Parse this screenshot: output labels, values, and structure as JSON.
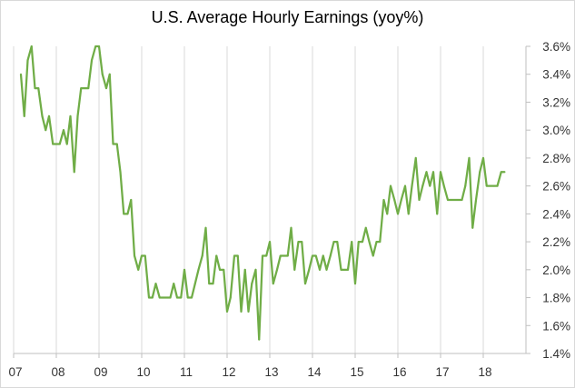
{
  "chart_data": {
    "type": "line",
    "title": "U.S. Average Hourly Earnings (yoy%)",
    "xlabel": "",
    "ylabel": "",
    "grid": {
      "horizontal": false,
      "vertical": true
    },
    "legend": "none",
    "ylim": [
      1.4,
      3.6
    ],
    "y_ticks": [
      "3.6%",
      "3.4%",
      "3.2%",
      "3.0%",
      "2.8%",
      "2.6%",
      "2.4%",
      "2.2%",
      "2.0%",
      "1.8%",
      "1.6%",
      "1.4%"
    ],
    "y_tick_values": [
      3.6,
      3.4,
      3.2,
      3.0,
      2.8,
      2.6,
      2.4,
      2.2,
      2.0,
      1.8,
      1.6,
      1.4
    ],
    "x_ticks": [
      "07",
      "08",
      "09",
      "10",
      "11",
      "12",
      "13",
      "14",
      "15",
      "16",
      "17",
      "18"
    ],
    "x_tick_values": [
      2007,
      2008,
      2009,
      2010,
      2011,
      2012,
      2013,
      2014,
      2015,
      2016,
      2017,
      2018
    ],
    "xlim": [
      2007,
      2019
    ],
    "series": [
      {
        "color": "#70ad47",
        "x": [
          2007.17,
          2007.25,
          2007.33,
          2007.42,
          2007.5,
          2007.58,
          2007.67,
          2007.75,
          2007.83,
          2007.92,
          2008.0,
          2008.08,
          2008.17,
          2008.25,
          2008.33,
          2008.42,
          2008.5,
          2008.58,
          2008.67,
          2008.75,
          2008.83,
          2008.92,
          2009.0,
          2009.08,
          2009.17,
          2009.25,
          2009.33,
          2009.42,
          2009.5,
          2009.58,
          2009.67,
          2009.75,
          2009.83,
          2009.92,
          2010.0,
          2010.08,
          2010.17,
          2010.25,
          2010.33,
          2010.42,
          2010.5,
          2010.58,
          2010.67,
          2010.75,
          2010.83,
          2010.92,
          2011.0,
          2011.08,
          2011.17,
          2011.25,
          2011.33,
          2011.42,
          2011.5,
          2011.58,
          2011.67,
          2011.75,
          2011.83,
          2011.92,
          2012.0,
          2012.08,
          2012.17,
          2012.25,
          2012.33,
          2012.42,
          2012.5,
          2012.58,
          2012.67,
          2012.75,
          2012.83,
          2012.92,
          2013.0,
          2013.08,
          2013.17,
          2013.25,
          2013.33,
          2013.42,
          2013.5,
          2013.58,
          2013.67,
          2013.75,
          2013.83,
          2013.92,
          2014.0,
          2014.08,
          2014.17,
          2014.25,
          2014.33,
          2014.42,
          2014.5,
          2014.58,
          2014.67,
          2014.75,
          2014.83,
          2014.92,
          2015.0,
          2015.08,
          2015.17,
          2015.25,
          2015.33,
          2015.42,
          2015.5,
          2015.58,
          2015.67,
          2015.75,
          2015.83,
          2015.92,
          2016.0,
          2016.08,
          2016.17,
          2016.25,
          2016.33,
          2016.42,
          2016.5,
          2016.58,
          2016.67,
          2016.75,
          2016.83,
          2016.92,
          2017.0,
          2017.08,
          2017.17,
          2017.25,
          2017.33,
          2017.42,
          2017.5,
          2017.58,
          2017.67,
          2017.75,
          2017.83,
          2017.92,
          2018.0,
          2018.08,
          2018.17,
          2018.25,
          2018.33,
          2018.42,
          2018.5
        ],
        "y": [
          3.4,
          3.1,
          3.5,
          3.6,
          3.3,
          3.3,
          3.1,
          3.0,
          3.1,
          2.9,
          2.9,
          2.9,
          3.0,
          2.9,
          3.1,
          2.7,
          3.1,
          3.3,
          3.3,
          3.3,
          3.5,
          3.6,
          3.6,
          3.4,
          3.3,
          3.4,
          2.9,
          2.9,
          2.7,
          2.4,
          2.4,
          2.5,
          2.1,
          2.0,
          2.1,
          2.1,
          1.8,
          1.8,
          1.9,
          1.8,
          1.8,
          1.8,
          1.8,
          1.9,
          1.8,
          1.8,
          2.0,
          1.8,
          1.8,
          1.9,
          2.0,
          2.1,
          2.3,
          1.9,
          1.9,
          2.1,
          2.0,
          2.0,
          1.7,
          1.8,
          2.1,
          2.1,
          1.7,
          2.0,
          1.7,
          1.9,
          2.0,
          1.5,
          2.1,
          2.1,
          2.2,
          1.9,
          2.0,
          2.1,
          2.1,
          2.1,
          2.3,
          2.0,
          2.2,
          2.2,
          1.9,
          2.0,
          2.1,
          2.1,
          2.0,
          2.1,
          2.0,
          2.1,
          2.2,
          2.2,
          2.0,
          2.0,
          2.0,
          2.2,
          1.9,
          2.2,
          2.2,
          2.3,
          2.2,
          2.1,
          2.2,
          2.2,
          2.5,
          2.4,
          2.6,
          2.5,
          2.4,
          2.5,
          2.6,
          2.4,
          2.6,
          2.8,
          2.5,
          2.6,
          2.7,
          2.6,
          2.7,
          2.4,
          2.7,
          2.6,
          2.5,
          2.5,
          2.5,
          2.5,
          2.5,
          2.6,
          2.8,
          2.3,
          2.5,
          2.7,
          2.8,
          2.6,
          2.6,
          2.6,
          2.6,
          2.7,
          2.7
        ]
      }
    ]
  }
}
